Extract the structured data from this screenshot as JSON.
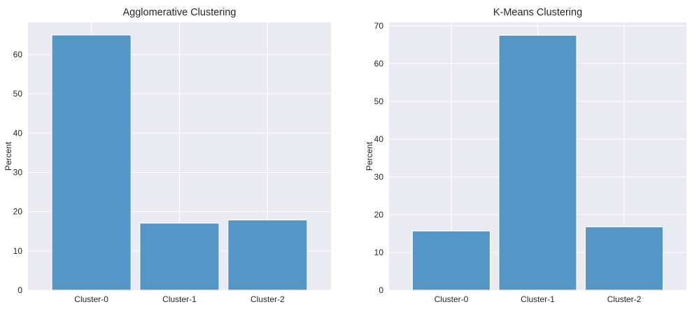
{
  "chart_data": [
    {
      "type": "bar",
      "title": "Agglomerative Clustering",
      "xlabel": "",
      "ylabel": "Percent",
      "categories": [
        "Cluster-0",
        "Cluster-1",
        "Cluster-2"
      ],
      "values": [
        65.0,
        17.1,
        17.9
      ],
      "ylim": [
        0,
        68.2
      ],
      "yticks": [
        0,
        10,
        20,
        30,
        40,
        50,
        60
      ],
      "grid": true,
      "bar_color": "#4c92c3",
      "background_color": "#eaeaf2"
    },
    {
      "type": "bar",
      "title": "K-Means Clustering",
      "xlabel": "",
      "ylabel": "Percent",
      "categories": [
        "Cluster-0",
        "Cluster-1",
        "Cluster-2"
      ],
      "values": [
        15.7,
        67.5,
        16.8
      ],
      "ylim": [
        0,
        70.9
      ],
      "yticks": [
        0,
        10,
        20,
        30,
        40,
        50,
        60,
        70
      ],
      "grid": true,
      "bar_color": "#4c92c3",
      "background_color": "#eaeaf2"
    }
  ]
}
